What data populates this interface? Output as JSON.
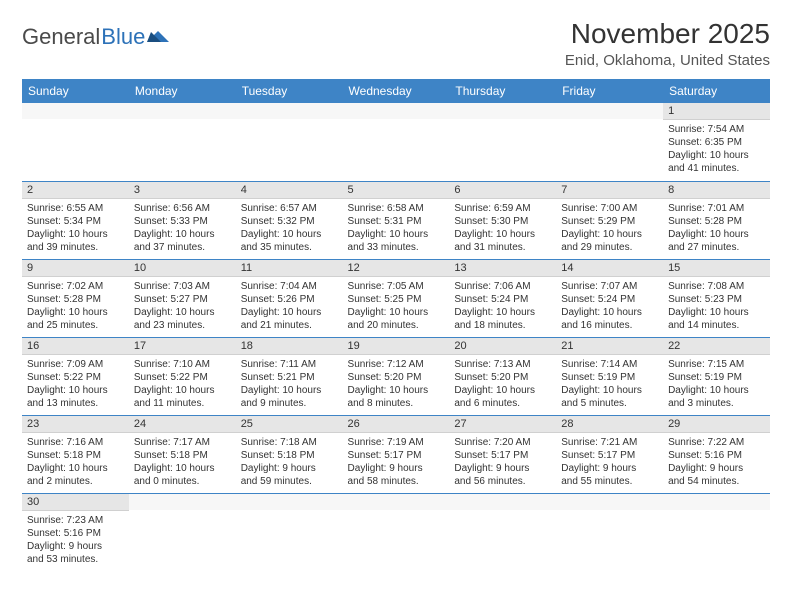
{
  "logo": {
    "general": "General",
    "blue": "Blue"
  },
  "title": "November 2025",
  "location": "Enid, Oklahoma, United States",
  "colors": {
    "header_bg": "#3e84c6",
    "header_text": "#ffffff",
    "daynum_bg": "#e6e6e6",
    "row_border": "#3e84c6",
    "logo_blue": "#2d72b8"
  },
  "weekdays": [
    "Sunday",
    "Monday",
    "Tuesday",
    "Wednesday",
    "Thursday",
    "Friday",
    "Saturday"
  ],
  "weeks": [
    [
      null,
      null,
      null,
      null,
      null,
      null,
      {
        "n": "1",
        "sr": "Sunrise: 7:54 AM",
        "ss": "Sunset: 6:35 PM",
        "d1": "Daylight: 10 hours",
        "d2": "and 41 minutes."
      }
    ],
    [
      {
        "n": "2",
        "sr": "Sunrise: 6:55 AM",
        "ss": "Sunset: 5:34 PM",
        "d1": "Daylight: 10 hours",
        "d2": "and 39 minutes."
      },
      {
        "n": "3",
        "sr": "Sunrise: 6:56 AM",
        "ss": "Sunset: 5:33 PM",
        "d1": "Daylight: 10 hours",
        "d2": "and 37 minutes."
      },
      {
        "n": "4",
        "sr": "Sunrise: 6:57 AM",
        "ss": "Sunset: 5:32 PM",
        "d1": "Daylight: 10 hours",
        "d2": "and 35 minutes."
      },
      {
        "n": "5",
        "sr": "Sunrise: 6:58 AM",
        "ss": "Sunset: 5:31 PM",
        "d1": "Daylight: 10 hours",
        "d2": "and 33 minutes."
      },
      {
        "n": "6",
        "sr": "Sunrise: 6:59 AM",
        "ss": "Sunset: 5:30 PM",
        "d1": "Daylight: 10 hours",
        "d2": "and 31 minutes."
      },
      {
        "n": "7",
        "sr": "Sunrise: 7:00 AM",
        "ss": "Sunset: 5:29 PM",
        "d1": "Daylight: 10 hours",
        "d2": "and 29 minutes."
      },
      {
        "n": "8",
        "sr": "Sunrise: 7:01 AM",
        "ss": "Sunset: 5:28 PM",
        "d1": "Daylight: 10 hours",
        "d2": "and 27 minutes."
      }
    ],
    [
      {
        "n": "9",
        "sr": "Sunrise: 7:02 AM",
        "ss": "Sunset: 5:28 PM",
        "d1": "Daylight: 10 hours",
        "d2": "and 25 minutes."
      },
      {
        "n": "10",
        "sr": "Sunrise: 7:03 AM",
        "ss": "Sunset: 5:27 PM",
        "d1": "Daylight: 10 hours",
        "d2": "and 23 minutes."
      },
      {
        "n": "11",
        "sr": "Sunrise: 7:04 AM",
        "ss": "Sunset: 5:26 PM",
        "d1": "Daylight: 10 hours",
        "d2": "and 21 minutes."
      },
      {
        "n": "12",
        "sr": "Sunrise: 7:05 AM",
        "ss": "Sunset: 5:25 PM",
        "d1": "Daylight: 10 hours",
        "d2": "and 20 minutes."
      },
      {
        "n": "13",
        "sr": "Sunrise: 7:06 AM",
        "ss": "Sunset: 5:24 PM",
        "d1": "Daylight: 10 hours",
        "d2": "and 18 minutes."
      },
      {
        "n": "14",
        "sr": "Sunrise: 7:07 AM",
        "ss": "Sunset: 5:24 PM",
        "d1": "Daylight: 10 hours",
        "d2": "and 16 minutes."
      },
      {
        "n": "15",
        "sr": "Sunrise: 7:08 AM",
        "ss": "Sunset: 5:23 PM",
        "d1": "Daylight: 10 hours",
        "d2": "and 14 minutes."
      }
    ],
    [
      {
        "n": "16",
        "sr": "Sunrise: 7:09 AM",
        "ss": "Sunset: 5:22 PM",
        "d1": "Daylight: 10 hours",
        "d2": "and 13 minutes."
      },
      {
        "n": "17",
        "sr": "Sunrise: 7:10 AM",
        "ss": "Sunset: 5:22 PM",
        "d1": "Daylight: 10 hours",
        "d2": "and 11 minutes."
      },
      {
        "n": "18",
        "sr": "Sunrise: 7:11 AM",
        "ss": "Sunset: 5:21 PM",
        "d1": "Daylight: 10 hours",
        "d2": "and 9 minutes."
      },
      {
        "n": "19",
        "sr": "Sunrise: 7:12 AM",
        "ss": "Sunset: 5:20 PM",
        "d1": "Daylight: 10 hours",
        "d2": "and 8 minutes."
      },
      {
        "n": "20",
        "sr": "Sunrise: 7:13 AM",
        "ss": "Sunset: 5:20 PM",
        "d1": "Daylight: 10 hours",
        "d2": "and 6 minutes."
      },
      {
        "n": "21",
        "sr": "Sunrise: 7:14 AM",
        "ss": "Sunset: 5:19 PM",
        "d1": "Daylight: 10 hours",
        "d2": "and 5 minutes."
      },
      {
        "n": "22",
        "sr": "Sunrise: 7:15 AM",
        "ss": "Sunset: 5:19 PM",
        "d1": "Daylight: 10 hours",
        "d2": "and 3 minutes."
      }
    ],
    [
      {
        "n": "23",
        "sr": "Sunrise: 7:16 AM",
        "ss": "Sunset: 5:18 PM",
        "d1": "Daylight: 10 hours",
        "d2": "and 2 minutes."
      },
      {
        "n": "24",
        "sr": "Sunrise: 7:17 AM",
        "ss": "Sunset: 5:18 PM",
        "d1": "Daylight: 10 hours",
        "d2": "and 0 minutes."
      },
      {
        "n": "25",
        "sr": "Sunrise: 7:18 AM",
        "ss": "Sunset: 5:18 PM",
        "d1": "Daylight: 9 hours",
        "d2": "and 59 minutes."
      },
      {
        "n": "26",
        "sr": "Sunrise: 7:19 AM",
        "ss": "Sunset: 5:17 PM",
        "d1": "Daylight: 9 hours",
        "d2": "and 58 minutes."
      },
      {
        "n": "27",
        "sr": "Sunrise: 7:20 AM",
        "ss": "Sunset: 5:17 PM",
        "d1": "Daylight: 9 hours",
        "d2": "and 56 minutes."
      },
      {
        "n": "28",
        "sr": "Sunrise: 7:21 AM",
        "ss": "Sunset: 5:17 PM",
        "d1": "Daylight: 9 hours",
        "d2": "and 55 minutes."
      },
      {
        "n": "29",
        "sr": "Sunrise: 7:22 AM",
        "ss": "Sunset: 5:16 PM",
        "d1": "Daylight: 9 hours",
        "d2": "and 54 minutes."
      }
    ],
    [
      {
        "n": "30",
        "sr": "Sunrise: 7:23 AM",
        "ss": "Sunset: 5:16 PM",
        "d1": "Daylight: 9 hours",
        "d2": "and 53 minutes."
      },
      null,
      null,
      null,
      null,
      null,
      null
    ]
  ]
}
